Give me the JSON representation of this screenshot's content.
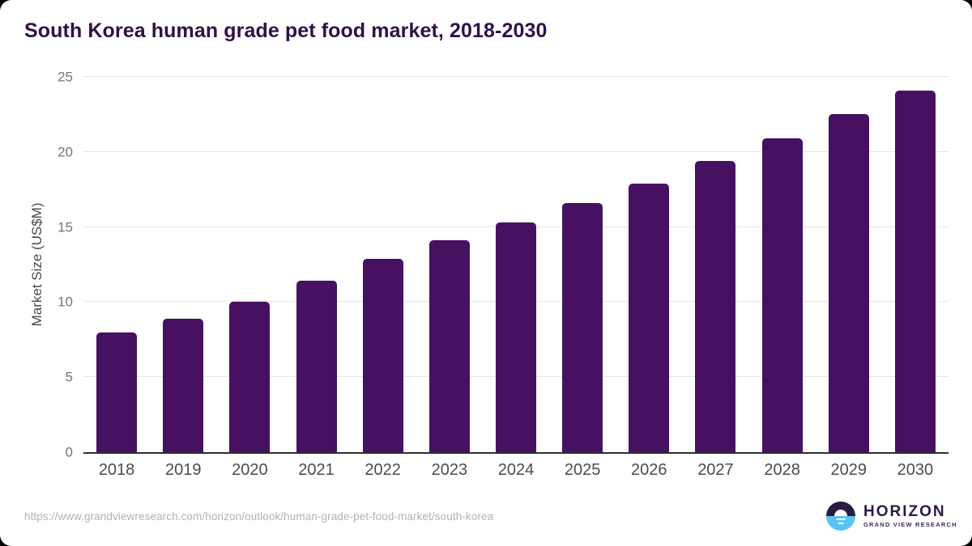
{
  "page": {
    "title": "South Korea human grade pet food market, 2018-2030",
    "source_url": "https://www.grandviewresearch.com/horizon/outlook/human-grade-pet-food-market/south-korea"
  },
  "logo": {
    "name": "HORIZON",
    "subtitle": "GRAND VIEW RESEARCH",
    "icon": "horizon-sunrise-icon",
    "colors": {
      "dark": "#2b1946",
      "blue": "#59c4f1"
    }
  },
  "chart_data": {
    "type": "bar",
    "title": "South Korea human grade pet food market, 2018-2030",
    "categories": [
      "2018",
      "2019",
      "2020",
      "2021",
      "2022",
      "2023",
      "2024",
      "2025",
      "2026",
      "2027",
      "2028",
      "2029",
      "2030"
    ],
    "values": [
      8.0,
      8.9,
      10.0,
      11.4,
      12.9,
      14.1,
      15.3,
      16.6,
      17.9,
      19.4,
      20.9,
      22.5,
      24.1
    ],
    "xlabel": "",
    "ylabel": "Market Size (US$M)",
    "ylim": [
      0,
      25
    ],
    "yticks": [
      0,
      5,
      10,
      15,
      20,
      25
    ],
    "grid": "horizontal",
    "legend": "none",
    "bar_color": "#471162",
    "axis_line_color": "#2e2e2e",
    "gridline_color": "#e6e6e6",
    "title_color": "#311047"
  }
}
